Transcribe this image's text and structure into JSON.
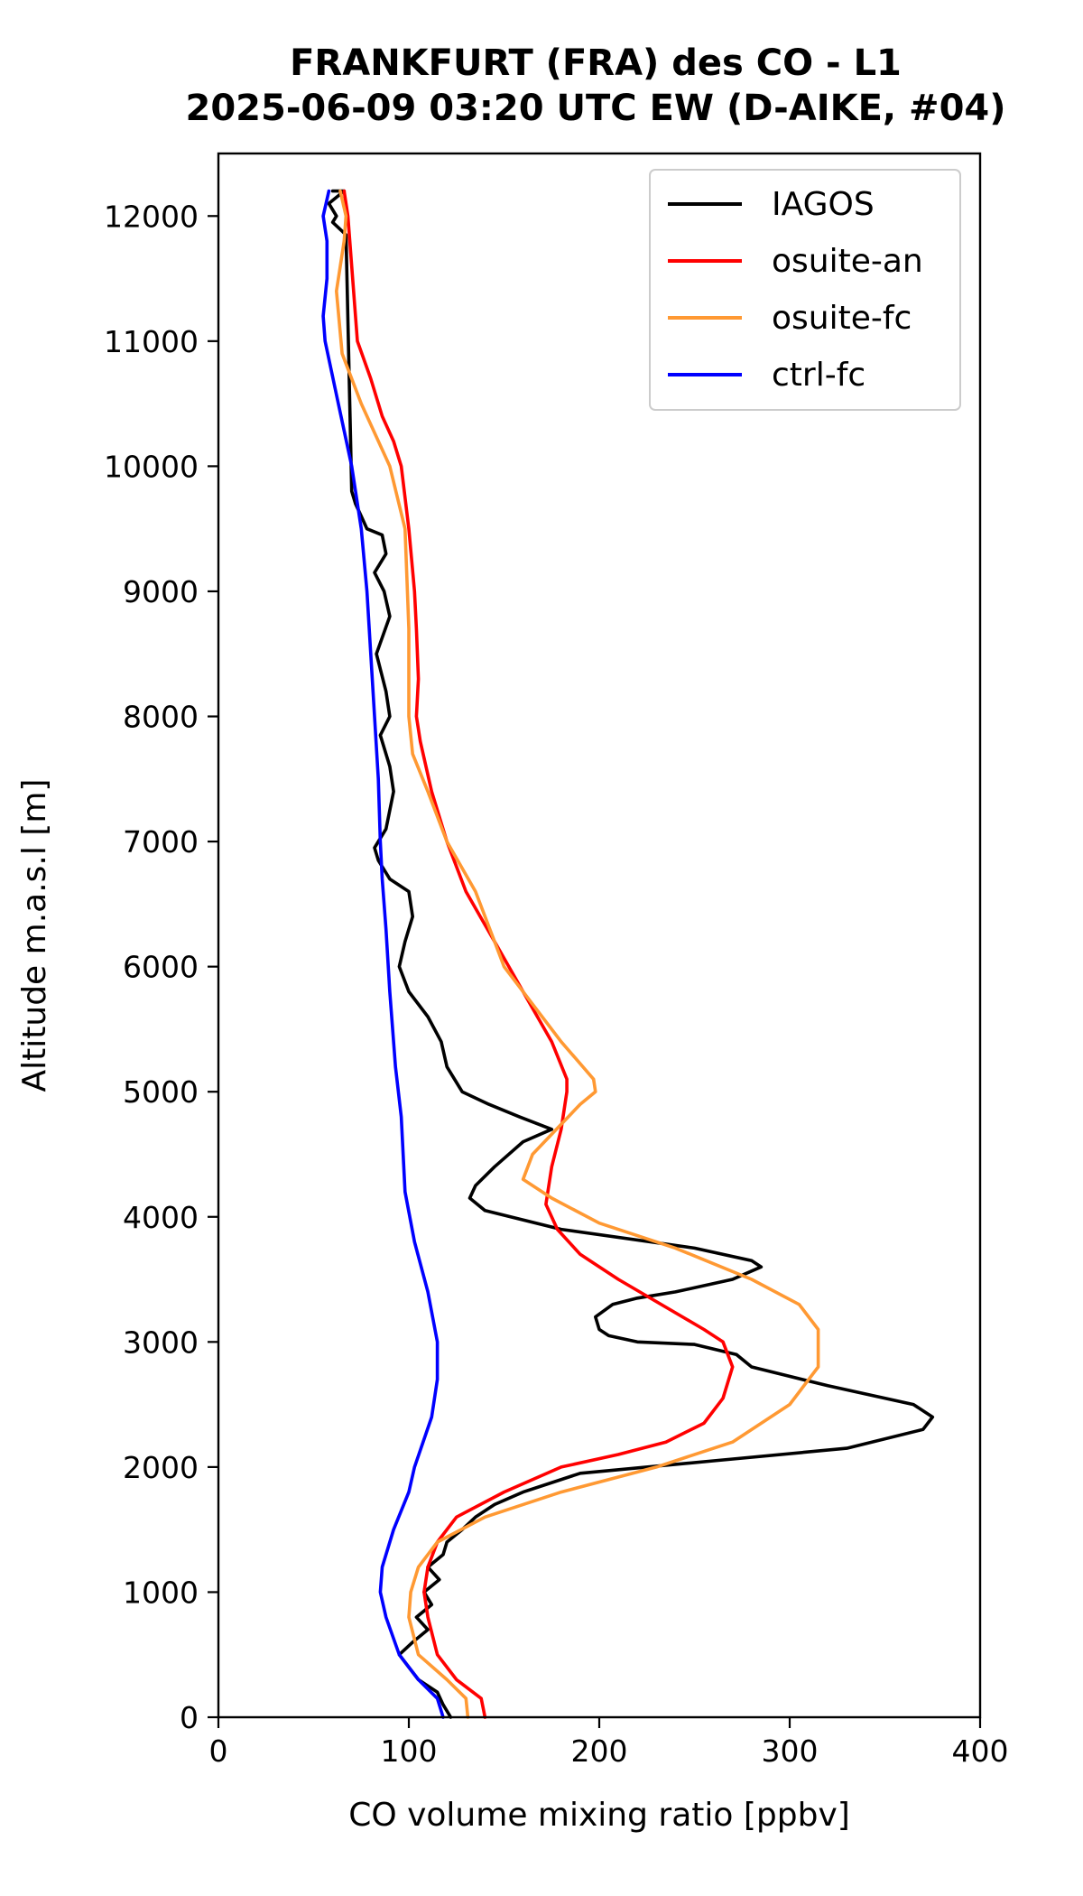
{
  "chart_data": {
    "type": "line",
    "title_line1": "FRANKFURT (FRA) des CO - L1",
    "title_line2": "2025-06-09 03:20 UTC EW (D-AIKE, #04)",
    "xlabel": "CO volume mixing ratio [ppbv]",
    "ylabel": "Altitude m.a.s.l [m]",
    "xlim": [
      0,
      400
    ],
    "ylim": [
      0,
      12500
    ],
    "xticks": [
      0,
      100,
      200,
      300,
      400
    ],
    "yticks": [
      0,
      1000,
      2000,
      3000,
      4000,
      5000,
      6000,
      7000,
      8000,
      9000,
      10000,
      11000,
      12000
    ],
    "grid": false,
    "legend_position": "top-right",
    "series": [
      {
        "name": "IAGOS",
        "color": "#000000",
        "x": [
          122,
          118,
          115,
          105,
          100,
          95,
          102,
          110,
          104,
          112,
          108,
          116,
          110,
          118,
          120,
          128,
          135,
          145,
          160,
          190,
          260,
          330,
          370,
          375,
          365,
          320,
          280,
          272,
          250,
          220,
          205,
          200,
          198,
          207,
          220,
          240,
          270,
          285,
          280,
          250,
          180,
          140,
          132,
          135,
          145,
          160,
          175,
          158,
          142,
          128,
          120,
          117,
          110,
          100,
          95,
          98,
          102,
          100,
          90,
          84,
          82,
          88,
          92,
          90,
          85,
          90,
          88,
          83,
          90,
          87,
          82,
          88,
          86,
          78,
          75,
          72,
          70,
          67,
          60,
          62,
          58,
          62,
          66,
          60
        ],
        "y": [
          0,
          100,
          200,
          300,
          400,
          500,
          600,
          700,
          800,
          900,
          1000,
          1100,
          1200,
          1300,
          1400,
          1500,
          1600,
          1700,
          1800,
          1950,
          2050,
          2150,
          2300,
          2400,
          2500,
          2650,
          2800,
          2900,
          2980,
          3000,
          3050,
          3100,
          3200,
          3300,
          3350,
          3400,
          3500,
          3600,
          3650,
          3750,
          3900,
          4050,
          4150,
          4250,
          4400,
          4600,
          4700,
          4800,
          4900,
          5000,
          5200,
          5400,
          5600,
          5800,
          6000,
          6200,
          6400,
          6600,
          6700,
          6850,
          6950,
          7100,
          7400,
          7600,
          7850,
          8000,
          8200,
          8500,
          8800,
          9000,
          9150,
          9300,
          9450,
          9500,
          9600,
          9700,
          9800,
          11850,
          11950,
          12000,
          12100,
          12150,
          12200,
          12200
        ]
      },
      {
        "name": "osuite-an",
        "color": "#ff0000",
        "x": [
          140,
          138,
          125,
          115,
          110,
          108,
          110,
          115,
          125,
          150,
          180,
          210,
          235,
          255,
          265,
          270,
          265,
          255,
          210,
          190,
          178,
          172,
          175,
          180,
          183,
          183,
          175,
          160,
          145,
          130,
          120,
          112,
          106,
          104,
          105,
          104,
          103,
          100,
          96,
          92,
          86,
          80,
          73,
          72,
          70,
          68,
          66
        ],
        "y": [
          0,
          150,
          300,
          500,
          800,
          1000,
          1200,
          1400,
          1600,
          1800,
          2000,
          2100,
          2200,
          2350,
          2550,
          2800,
          3000,
          3100,
          3500,
          3700,
          3900,
          4100,
          4400,
          4700,
          5000,
          5100,
          5400,
          5800,
          6200,
          6600,
          7000,
          7400,
          7800,
          8000,
          8300,
          8700,
          9000,
          9500,
          10000,
          10200,
          10400,
          10700,
          11000,
          11200,
          11600,
          12000,
          12200
        ]
      },
      {
        "name": "osuite-fc",
        "color": "#ff9933",
        "x": [
          131,
          130,
          120,
          105,
          100,
          101,
          105,
          115,
          140,
          180,
          230,
          270,
          300,
          315,
          315,
          305,
          280,
          240,
          200,
          175,
          160,
          165,
          190,
          198,
          197,
          180,
          165,
          150,
          145,
          135,
          120,
          110,
          102,
          100,
          100,
          98,
          90,
          75,
          65,
          62,
          66,
          67,
          64
        ],
        "y": [
          0,
          150,
          300,
          500,
          800,
          1000,
          1200,
          1400,
          1600,
          1800,
          2000,
          2200,
          2500,
          2800,
          3100,
          3300,
          3500,
          3750,
          3950,
          4150,
          4300,
          4500,
          4900,
          5000,
          5100,
          5400,
          5700,
          6000,
          6200,
          6600,
          7000,
          7400,
          7700,
          8000,
          8700,
          9500,
          10000,
          10500,
          10900,
          11400,
          11800,
          12000,
          12200
        ]
      },
      {
        "name": "ctrl-fc",
        "color": "#0000ff",
        "x": [
          118,
          115,
          105,
          95,
          88,
          85,
          86,
          92,
          100,
          103,
          112,
          115,
          115,
          110,
          103,
          98,
          97,
          96,
          93,
          90,
          88,
          86,
          85,
          84,
          82,
          80,
          78,
          75,
          70,
          63,
          56,
          55,
          57,
          57,
          55,
          58
        ],
        "y": [
          0,
          150,
          300,
          500,
          800,
          1000,
          1200,
          1500,
          1800,
          2000,
          2400,
          2700,
          3000,
          3400,
          3800,
          4200,
          4500,
          4800,
          5200,
          5800,
          6300,
          6700,
          7000,
          7500,
          8000,
          8500,
          9000,
          9500,
          10000,
          10500,
          11000,
          11200,
          11500,
          11800,
          12000,
          12200
        ]
      }
    ]
  }
}
